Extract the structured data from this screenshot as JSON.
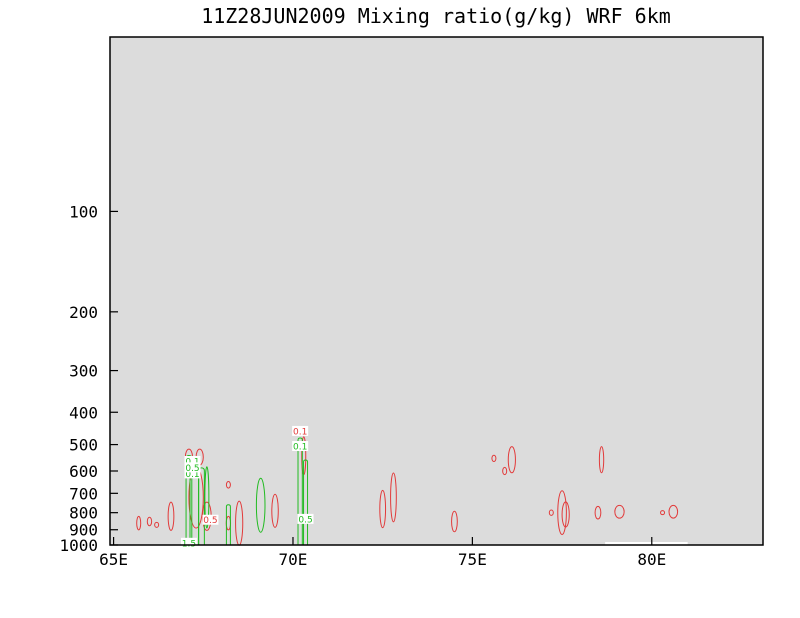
{
  "chart_data": {
    "type": "contour",
    "title": "11Z28JUN2009 Mixing ratio(g/kg)  WRF 6km",
    "background_color": "#dcdcdc",
    "x_axis": {
      "range": [
        64.9,
        83.1
      ],
      "ticks": [
        {
          "value": 65,
          "label": "65E"
        },
        {
          "value": 70,
          "label": "70E"
        },
        {
          "value": 75,
          "label": "75E"
        },
        {
          "value": 80,
          "label": "80E"
        }
      ]
    },
    "y_axis": {
      "scale": "log-pressure",
      "range": [
        1000,
        30
      ],
      "ticks": [
        {
          "value": 100,
          "label": "100"
        },
        {
          "value": 200,
          "label": "200"
        },
        {
          "value": 300,
          "label": "300"
        },
        {
          "value": 400,
          "label": "400"
        },
        {
          "value": 500,
          "label": "500"
        },
        {
          "value": 600,
          "label": "600"
        },
        {
          "value": 700,
          "label": "700"
        },
        {
          "value": 800,
          "label": "800"
        },
        {
          "value": 900,
          "label": "900"
        },
        {
          "value": 1000,
          "label": "1000"
        }
      ]
    },
    "series": [
      {
        "color": "#e23a3a",
        "contours": [
          {
            "lon": 65.7,
            "p": 860,
            "dlon": 0.05,
            "dp": 40
          },
          {
            "lon": 66.0,
            "p": 850,
            "dlon": 0.06,
            "dp": 25
          },
          {
            "lon": 66.2,
            "p": 870,
            "dlon": 0.05,
            "dp": 15
          },
          {
            "lon": 66.6,
            "p": 820,
            "dlon": 0.08,
            "dp": 80
          },
          {
            "lon": 67.1,
            "p": 545,
            "dlon": 0.1,
            "dp": 30
          },
          {
            "lon": 67.4,
            "p": 545,
            "dlon": 0.1,
            "dp": 30
          },
          {
            "lon": 67.3,
            "p": 720,
            "dlon": 0.2,
            "dp": 150
          },
          {
            "lon": 67.6,
            "p": 820,
            "dlon": 0.12,
            "dp": 80
          },
          {
            "lon": 68.2,
            "p": 860,
            "dlon": 0.06,
            "dp": 40
          },
          {
            "lon": 68.5,
            "p": 860,
            "dlon": 0.1,
            "dp": 130
          },
          {
            "lon": 68.2,
            "p": 660,
            "dlon": 0.03,
            "dp": 15
          },
          {
            "lon": 69.5,
            "p": 790,
            "dlon": 0.09,
            "dp": 90
          },
          {
            "lon": 70.3,
            "p": 540,
            "dlon": 0.05,
            "dp": 70
          },
          {
            "lon": 72.5,
            "p": 780,
            "dlon": 0.08,
            "dp": 100
          },
          {
            "lon": 72.8,
            "p": 720,
            "dlon": 0.08,
            "dp": 120
          },
          {
            "lon": 74.5,
            "p": 850,
            "dlon": 0.08,
            "dp": 60
          },
          {
            "lon": 75.6,
            "p": 550,
            "dlon": 0.04,
            "dp": 12
          },
          {
            "lon": 75.9,
            "p": 600,
            "dlon": 0.03,
            "dp": 15
          },
          {
            "lon": 76.1,
            "p": 555,
            "dlon": 0.1,
            "dp": 50
          },
          {
            "lon": 77.2,
            "p": 800,
            "dlon": 0.04,
            "dp": 15
          },
          {
            "lon": 77.5,
            "p": 800,
            "dlon": 0.12,
            "dp": 120
          },
          {
            "lon": 77.6,
            "p": 810,
            "dlon": 0.1,
            "dp": 70
          },
          {
            "lon": 78.5,
            "p": 800,
            "dlon": 0.08,
            "dp": 35
          },
          {
            "lon": 78.6,
            "p": 555,
            "dlon": 0.06,
            "dp": 50
          },
          {
            "lon": 79.1,
            "p": 795,
            "dlon": 0.13,
            "dp": 35
          },
          {
            "lon": 80.3,
            "p": 800,
            "dlon": 0.05,
            "dp": 8
          },
          {
            "lon": 80.6,
            "p": 795,
            "dlon": 0.12,
            "dp": 35
          }
        ],
        "labels": [
          {
            "lon": 70.2,
            "p": 455,
            "text": "0.1"
          },
          {
            "lon": 67.7,
            "p": 840,
            "text": "0.5"
          }
        ]
      },
      {
        "color": "#22bb22",
        "contours": [
          {
            "lon": 67.1,
            "p": 770,
            "dlon": 0.08,
            "dp": 280,
            "bottom": true
          },
          {
            "lon": 67.25,
            "p": 770,
            "dlon": 0.12,
            "dp": 250,
            "bottom": true
          },
          {
            "lon": 67.45,
            "p": 750,
            "dlon": 0.08,
            "dp": 180,
            "bottom": true
          },
          {
            "lon": 67.6,
            "p": 720,
            "dlon": 0.05,
            "dp": 150
          },
          {
            "lon": 68.2,
            "p": 870,
            "dlon": 0.05,
            "dp": 120,
            "bottom": true
          },
          {
            "lon": 69.1,
            "p": 760,
            "dlon": 0.12,
            "dp": 140
          },
          {
            "lon": 70.2,
            "p": 720,
            "dlon": 0.06,
            "dp": 280,
            "bottom": true
          },
          {
            "lon": 70.35,
            "p": 760,
            "dlon": 0.04,
            "dp": 230,
            "bottom": true
          }
        ],
        "labels": [
          {
            "lon": 67.2,
            "p": 560,
            "text": "0.1"
          },
          {
            "lon": 67.2,
            "p": 610,
            "text": "0.1"
          },
          {
            "lon": 67.2,
            "p": 585,
            "text": "0.5"
          },
          {
            "lon": 70.2,
            "p": 505,
            "text": "0.1"
          },
          {
            "lon": 70.35,
            "p": 835,
            "text": "0.5"
          },
          {
            "lon": 67.1,
            "p": 985,
            "text": "1.5"
          }
        ]
      }
    ],
    "terrain": [
      {
        "lon_start": 78.7,
        "lon_end": 81.0,
        "color": "#ffffff"
      }
    ]
  }
}
